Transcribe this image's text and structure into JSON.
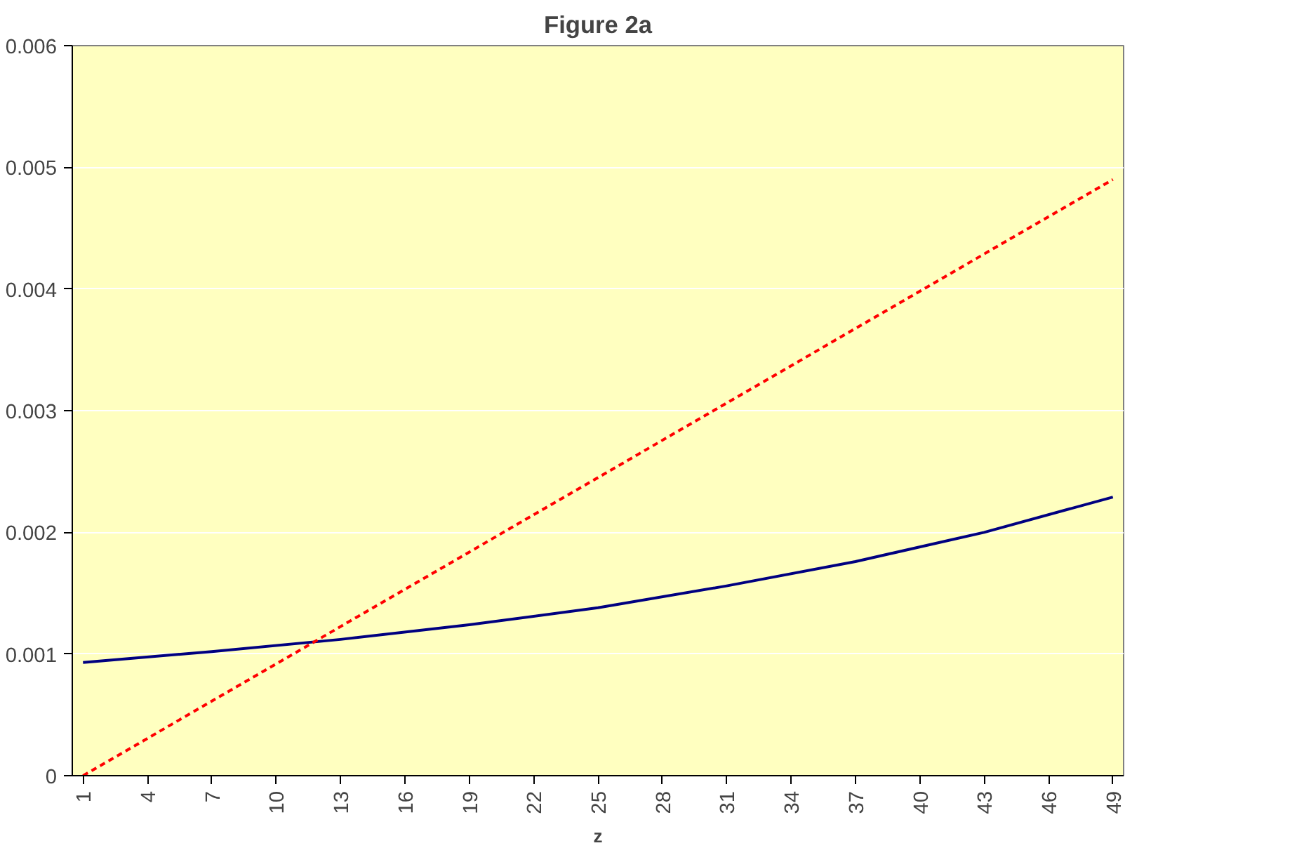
{
  "chart_data": {
    "type": "line",
    "title": "Figure 2a",
    "xlabel": "z",
    "xlim": [
      0.5,
      49.5
    ],
    "xticks": [
      1,
      4,
      7,
      10,
      13,
      16,
      19,
      22,
      25,
      28,
      31,
      34,
      37,
      40,
      43,
      46,
      49
    ],
    "ylim": [
      0,
      0.006
    ],
    "yticks": [
      0,
      0.001,
      0.002,
      0.003,
      0.004,
      0.005,
      0.006
    ],
    "grid": "y",
    "series": [
      {
        "color": "#000080",
        "line_style": "solid",
        "x": [
          1,
          7,
          13,
          19,
          25,
          31,
          37,
          43,
          49
        ],
        "values": [
          0.00093,
          0.00102,
          0.00112,
          0.00124,
          0.00138,
          0.00156,
          0.00176,
          0.002,
          0.00229
        ]
      },
      {
        "color": "#ff0000",
        "line_style": "dashed",
        "x": [
          1,
          49
        ],
        "values": [
          0,
          0.0049
        ]
      }
    ]
  }
}
